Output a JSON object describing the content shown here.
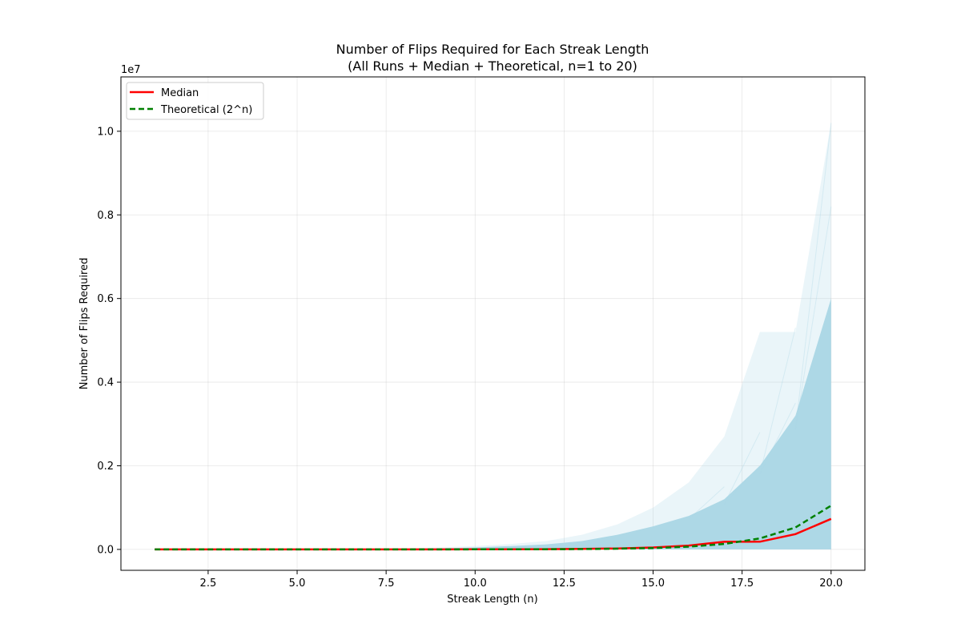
{
  "chart_data": {
    "type": "line",
    "title_line1": "Number of Flips Required for Each Streak Length",
    "title_line2": "(All Runs + Median + Theoretical, n=1 to 20)",
    "xlabel": "Streak Length (n)",
    "ylabel": "Number of Flips Required",
    "y_offset_label": "1e7",
    "xlim": [
      0.05,
      20.95
    ],
    "ylim": [
      -0.05,
      1.13
    ],
    "y_scale_note": "y values in units of 1e7",
    "xticks": [
      2.5,
      5.0,
      7.5,
      10.0,
      12.5,
      15.0,
      17.5,
      20.0
    ],
    "xtick_labels": [
      "2.5",
      "5.0",
      "7.5",
      "10.0",
      "12.5",
      "15.0",
      "17.5",
      "20.0"
    ],
    "yticks": [
      0.0,
      0.2,
      0.4,
      0.6,
      0.8,
      1.0
    ],
    "ytick_labels": [
      "0.0",
      "0.2",
      "0.4",
      "0.6",
      "0.8",
      "1.0"
    ],
    "grid": true,
    "legend_position": "top-left",
    "x": [
      1,
      2,
      3,
      4,
      5,
      6,
      7,
      8,
      9,
      10,
      11,
      12,
      13,
      14,
      15,
      16,
      17,
      18,
      19,
      20
    ],
    "series": [
      {
        "name": "Median",
        "color": "#ff0000",
        "style": "solid",
        "values": [
          1e-07,
          4e-07,
          1e-06,
          2.1e-06,
          4.3e-06,
          8.6e-06,
          1.74e-05,
          3.5e-05,
          7.06e-05,
          0.000141,
          0.000284,
          0.000568,
          0.00114,
          0.00227,
          0.00455,
          0.0091,
          0.0182,
          0.0183,
          0.0365,
          0.073
        ]
      },
      {
        "name": "Theoretical (2^n)",
        "color": "#008000",
        "style": "dashed",
        "values": [
          2e-07,
          4e-07,
          8e-07,
          1.6e-06,
          3.2e-06,
          6.4e-06,
          1.28e-05,
          2.56e-05,
          5.12e-05,
          0.0001024,
          0.0002048,
          0.0004096,
          0.0008192,
          0.0016384,
          0.0032768,
          0.0065536,
          0.0131072,
          0.0262144,
          0.0524288,
          0.1048576
        ]
      }
    ],
    "runs_band": {
      "color": "#add8e6",
      "dense_upper": [
        1e-05,
        2e-05,
        4e-05,
        8e-05,
        0.00015,
        0.0003,
        0.0006,
        0.0012,
        0.0024,
        0.0045,
        0.008,
        0.012,
        0.02,
        0.035,
        0.055,
        0.08,
        0.12,
        0.2,
        0.32,
        0.6
      ],
      "outlier_upper": [
        2e-05,
        4e-05,
        8e-05,
        0.00016,
        0.0003,
        0.0006,
        0.0012,
        0.0024,
        0.0045,
        0.008,
        0.013,
        0.02,
        0.035,
        0.06,
        0.1,
        0.16,
        0.27,
        0.52,
        0.52,
        1.02
      ]
    }
  }
}
